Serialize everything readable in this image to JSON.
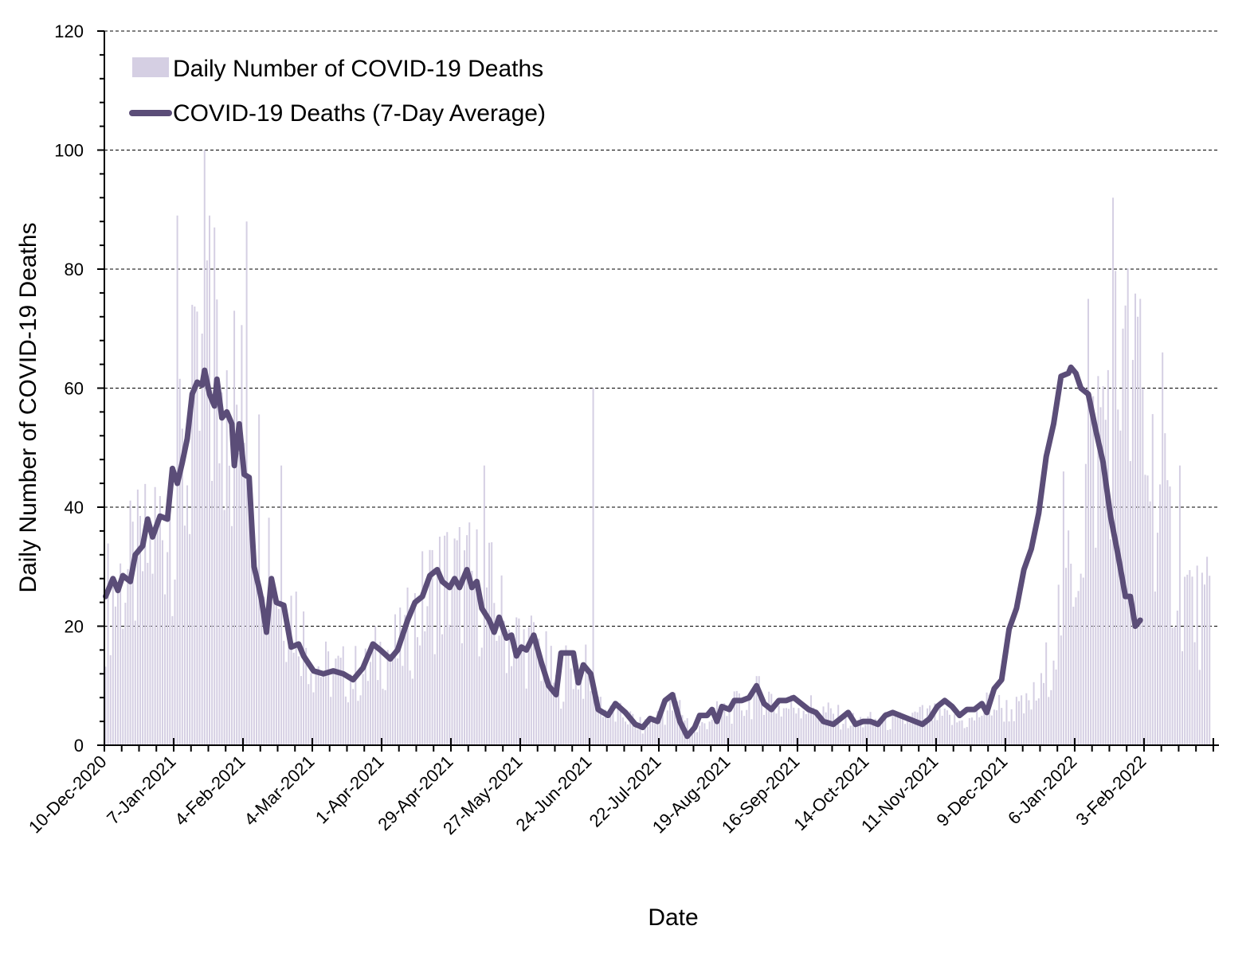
{
  "chart_data": {
    "type": "bar+line",
    "title": "",
    "xlabel": "Date",
    "ylabel": "Daily Number of COVID-19 Deaths",
    "ylim": [
      0,
      120
    ],
    "y_ticks": [
      0,
      20,
      40,
      60,
      80,
      100,
      120
    ],
    "grid": "horizontal dashed at major y ticks",
    "x_start_date": "10-Dec-2020",
    "x_end_date": "27-Feb-2022",
    "x_tick_labels": [
      "10-Dec-2020",
      "7-Jan-2021",
      "4-Feb-2021",
      "4-Mar-2021",
      "1-Apr-2021",
      "29-Apr-2021",
      "27-May-2021",
      "24-Jun-2021",
      "22-Jul-2021",
      "19-Aug-2021",
      "16-Sep-2021",
      "14-Oct-2021",
      "11-Nov-2021",
      "9-Dec-2021",
      "6-Jan-2022",
      "3-Feb-2022"
    ],
    "x_tick_interval_days": 28,
    "x_minor_tick_interval_days": 7,
    "legend": {
      "placement": "top-left",
      "entries": [
        {
          "label": "Daily Number of COVID-19 Deaths",
          "type": "bar",
          "color": "#d5cfe3"
        },
        {
          "label": "COVID-19 Deaths (7-Day Average)",
          "type": "line",
          "color": "#5b4d78"
        }
      ]
    },
    "series": [
      {
        "name": "Daily Number of COVID-19 Deaths",
        "type": "bar",
        "color": "#d5cfe3",
        "note": "Approximate: bar heights estimated from visible envelope in 7-day steps (day offset from 10-Dec-2020, typical daily deaths); notable spikes listed separately",
        "weekly_level_estimates": [
          {
            "day": 0,
            "value": 24
          },
          {
            "day": 7,
            "value": 28
          },
          {
            "day": 14,
            "value": 30
          },
          {
            "day": 21,
            "value": 36
          },
          {
            "day": 28,
            "value": 40
          },
          {
            "day": 35,
            "value": 50
          },
          {
            "day": 42,
            "value": 60
          },
          {
            "day": 49,
            "value": 58
          },
          {
            "day": 56,
            "value": 52
          },
          {
            "day": 63,
            "value": 42
          },
          {
            "day": 70,
            "value": 26
          },
          {
            "day": 77,
            "value": 22
          },
          {
            "day": 84,
            "value": 14
          },
          {
            "day": 91,
            "value": 12
          },
          {
            "day": 98,
            "value": 12
          },
          {
            "day": 105,
            "value": 12
          },
          {
            "day": 112,
            "value": 16
          },
          {
            "day": 119,
            "value": 16
          },
          {
            "day": 126,
            "value": 22
          },
          {
            "day": 133,
            "value": 27
          },
          {
            "day": 140,
            "value": 28
          },
          {
            "day": 147,
            "value": 27
          },
          {
            "day": 154,
            "value": 26
          },
          {
            "day": 161,
            "value": 20
          },
          {
            "day": 168,
            "value": 17
          },
          {
            "day": 175,
            "value": 16
          },
          {
            "day": 182,
            "value": 10
          },
          {
            "day": 189,
            "value": 14
          },
          {
            "day": 196,
            "value": 11
          },
          {
            "day": 203,
            "value": 5
          },
          {
            "day": 210,
            "value": 5
          },
          {
            "day": 217,
            "value": 3
          },
          {
            "day": 224,
            "value": 5
          },
          {
            "day": 231,
            "value": 7
          },
          {
            "day": 238,
            "value": 2
          },
          {
            "day": 245,
            "value": 5
          },
          {
            "day": 252,
            "value": 6
          },
          {
            "day": 259,
            "value": 7
          },
          {
            "day": 266,
            "value": 9
          },
          {
            "day": 273,
            "value": 6
          },
          {
            "day": 280,
            "value": 7
          },
          {
            "day": 287,
            "value": 6
          },
          {
            "day": 294,
            "value": 5
          },
          {
            "day": 301,
            "value": 4
          },
          {
            "day": 308,
            "value": 4
          },
          {
            "day": 315,
            "value": 4
          },
          {
            "day": 322,
            "value": 4
          },
          {
            "day": 329,
            "value": 5
          },
          {
            "day": 336,
            "value": 5
          },
          {
            "day": 343,
            "value": 4
          },
          {
            "day": 350,
            "value": 4
          },
          {
            "day": 357,
            "value": 7
          },
          {
            "day": 364,
            "value": 6
          },
          {
            "day": 371,
            "value": 6
          },
          {
            "day": 378,
            "value": 9
          },
          {
            "day": 385,
            "value": 21
          },
          {
            "day": 392,
            "value": 33
          },
          {
            "day": 399,
            "value": 48
          },
          {
            "day": 406,
            "value": 60
          },
          {
            "day": 413,
            "value": 60
          },
          {
            "day": 420,
            "value": 52
          },
          {
            "day": 427,
            "value": 38
          },
          {
            "day": 434,
            "value": 28
          },
          {
            "day": 441,
            "value": 22
          },
          {
            "day": 446,
            "value": 22
          }
        ],
        "notable_spikes": [
          {
            "day": 29,
            "value": 89
          },
          {
            "day": 35,
            "value": 74
          },
          {
            "day": 40,
            "value": 100
          },
          {
            "day": 42,
            "value": 69
          },
          {
            "day": 42,
            "value": 89
          },
          {
            "day": 44,
            "value": 87
          },
          {
            "day": 49,
            "value": 63
          },
          {
            "day": 52,
            "value": 73
          },
          {
            "day": 57,
            "value": 88
          },
          {
            "day": 71,
            "value": 47
          },
          {
            "day": 153,
            "value": 47
          },
          {
            "day": 197,
            "value": 60
          },
          {
            "day": 387,
            "value": 46
          },
          {
            "day": 397,
            "value": 75
          },
          {
            "day": 407,
            "value": 92
          },
          {
            "day": 411,
            "value": 70
          },
          {
            "day": 417,
            "value": 72
          },
          {
            "day": 418,
            "value": 75
          },
          {
            "day": 427,
            "value": 66
          },
          {
            "day": 434,
            "value": 47
          }
        ]
      },
      {
        "name": "COVID-19 Deaths (7-Day Average)",
        "type": "line",
        "color": "#5b4d78",
        "note": "Approximate values traced from the plotted line (day offset from 10-Dec-2020)",
        "points": [
          {
            "day": 0,
            "value": 25
          },
          {
            "day": 3,
            "value": 28
          },
          {
            "day": 5,
            "value": 26
          },
          {
            "day": 7,
            "value": 28.5
          },
          {
            "day": 10,
            "value": 27.5
          },
          {
            "day": 12,
            "value": 32
          },
          {
            "day": 15,
            "value": 33.5
          },
          {
            "day": 17,
            "value": 38
          },
          {
            "day": 19,
            "value": 35
          },
          {
            "day": 22,
            "value": 38.5
          },
          {
            "day": 25,
            "value": 38
          },
          {
            "day": 27,
            "value": 46.5
          },
          {
            "day": 29,
            "value": 44
          },
          {
            "day": 31,
            "value": 47.5
          },
          {
            "day": 33,
            "value": 51.5
          },
          {
            "day": 35,
            "value": 59
          },
          {
            "day": 37,
            "value": 61
          },
          {
            "day": 39,
            "value": 60.5
          },
          {
            "day": 40,
            "value": 63
          },
          {
            "day": 42,
            "value": 59
          },
          {
            "day": 44,
            "value": 57
          },
          {
            "day": 45,
            "value": 61.5
          },
          {
            "day": 47,
            "value": 55
          },
          {
            "day": 49,
            "value": 56
          },
          {
            "day": 51,
            "value": 54
          },
          {
            "day": 52,
            "value": 47
          },
          {
            "day": 54,
            "value": 54
          },
          {
            "day": 56,
            "value": 45.5
          },
          {
            "day": 58,
            "value": 45
          },
          {
            "day": 60,
            "value": 30
          },
          {
            "day": 62,
            "value": 26.5
          },
          {
            "day": 63,
            "value": 24.5
          },
          {
            "day": 65,
            "value": 19
          },
          {
            "day": 67,
            "value": 28
          },
          {
            "day": 69,
            "value": 24
          },
          {
            "day": 72,
            "value": 23.5
          },
          {
            "day": 75,
            "value": 16.5
          },
          {
            "day": 78,
            "value": 17
          },
          {
            "day": 80,
            "value": 15
          },
          {
            "day": 84,
            "value": 12.5
          },
          {
            "day": 88,
            "value": 12
          },
          {
            "day": 92,
            "value": 12.5
          },
          {
            "day": 96,
            "value": 12
          },
          {
            "day": 100,
            "value": 11
          },
          {
            "day": 104,
            "value": 13
          },
          {
            "day": 108,
            "value": 17
          },
          {
            "day": 111,
            "value": 16
          },
          {
            "day": 115,
            "value": 14.5
          },
          {
            "day": 118,
            "value": 16
          },
          {
            "day": 122,
            "value": 21
          },
          {
            "day": 125,
            "value": 24
          },
          {
            "day": 128,
            "value": 25
          },
          {
            "day": 131,
            "value": 28.5
          },
          {
            "day": 134,
            "value": 29.5
          },
          {
            "day": 136,
            "value": 27.5
          },
          {
            "day": 139,
            "value": 26.5
          },
          {
            "day": 141,
            "value": 28
          },
          {
            "day": 143,
            "value": 26.5
          },
          {
            "day": 146,
            "value": 29.5
          },
          {
            "day": 148,
            "value": 26.5
          },
          {
            "day": 150,
            "value": 27.5
          },
          {
            "day": 152,
            "value": 23
          },
          {
            "day": 155,
            "value": 21
          },
          {
            "day": 157,
            "value": 19
          },
          {
            "day": 159,
            "value": 21.5
          },
          {
            "day": 162,
            "value": 18
          },
          {
            "day": 164,
            "value": 18.5
          },
          {
            "day": 166,
            "value": 15
          },
          {
            "day": 168,
            "value": 16.5
          },
          {
            "day": 170,
            "value": 16
          },
          {
            "day": 173,
            "value": 18.5
          },
          {
            "day": 176,
            "value": 14
          },
          {
            "day": 179,
            "value": 10
          },
          {
            "day": 182,
            "value": 8.5
          },
          {
            "day": 184,
            "value": 15.5
          },
          {
            "day": 189,
            "value": 15.5
          },
          {
            "day": 191,
            "value": 10.5
          },
          {
            "day": 193,
            "value": 13.5
          },
          {
            "day": 196,
            "value": 12
          },
          {
            "day": 199,
            "value": 6
          },
          {
            "day": 203,
            "value": 5
          },
          {
            "day": 206,
            "value": 7
          },
          {
            "day": 210,
            "value": 5.5
          },
          {
            "day": 214,
            "value": 3.5
          },
          {
            "day": 217,
            "value": 3
          },
          {
            "day": 220,
            "value": 4.5
          },
          {
            "day": 223,
            "value": 4
          },
          {
            "day": 226,
            "value": 7.5
          },
          {
            "day": 229,
            "value": 8.5
          },
          {
            "day": 232,
            "value": 4
          },
          {
            "day": 235,
            "value": 1.5
          },
          {
            "day": 238,
            "value": 3
          },
          {
            "day": 240,
            "value": 5
          },
          {
            "day": 243,
            "value": 5
          },
          {
            "day": 245,
            "value": 6
          },
          {
            "day": 247,
            "value": 4
          },
          {
            "day": 249,
            "value": 6.5
          },
          {
            "day": 252,
            "value": 6
          },
          {
            "day": 254,
            "value": 7.5
          },
          {
            "day": 257,
            "value": 7.5
          },
          {
            "day": 260,
            "value": 8
          },
          {
            "day": 263,
            "value": 10
          },
          {
            "day": 266,
            "value": 7
          },
          {
            "day": 269,
            "value": 6
          },
          {
            "day": 272,
            "value": 7.5
          },
          {
            "day": 275,
            "value": 7.5
          },
          {
            "day": 278,
            "value": 8
          },
          {
            "day": 281,
            "value": 7
          },
          {
            "day": 284,
            "value": 6
          },
          {
            "day": 287,
            "value": 5.5
          },
          {
            "day": 290,
            "value": 4
          },
          {
            "day": 294,
            "value": 3.5
          },
          {
            "day": 297,
            "value": 4.5
          },
          {
            "day": 300,
            "value": 5.5
          },
          {
            "day": 303,
            "value": 3.5
          },
          {
            "day": 306,
            "value": 4
          },
          {
            "day": 309,
            "value": 4
          },
          {
            "day": 312,
            "value": 3.5
          },
          {
            "day": 315,
            "value": 5
          },
          {
            "day": 318,
            "value": 5.5
          },
          {
            "day": 321,
            "value": 5
          },
          {
            "day": 324,
            "value": 4.5
          },
          {
            "day": 327,
            "value": 4
          },
          {
            "day": 330,
            "value": 3.5
          },
          {
            "day": 333,
            "value": 4.5
          },
          {
            "day": 336,
            "value": 6.5
          },
          {
            "day": 339,
            "value": 7.5
          },
          {
            "day": 342,
            "value": 6.5
          },
          {
            "day": 345,
            "value": 5
          },
          {
            "day": 348,
            "value": 6
          },
          {
            "day": 351,
            "value": 6
          },
          {
            "day": 354,
            "value": 7
          },
          {
            "day": 356,
            "value": 5.5
          },
          {
            "day": 359,
            "value": 9.5
          },
          {
            "day": 362,
            "value": 11
          },
          {
            "day": 365,
            "value": 19.5
          },
          {
            "day": 368,
            "value": 23
          },
          {
            "day": 371,
            "value": 29.5
          },
          {
            "day": 374,
            "value": 33
          },
          {
            "day": 377,
            "value": 39
          },
          {
            "day": 380,
            "value": 48.5
          },
          {
            "day": 383,
            "value": 54
          },
          {
            "day": 386,
            "value": 62
          },
          {
            "day": 389,
            "value": 62.5
          },
          {
            "day": 390,
            "value": 63.5
          },
          {
            "day": 392,
            "value": 62.5
          },
          {
            "day": 394,
            "value": 60
          },
          {
            "day": 397,
            "value": 59
          },
          {
            "day": 400,
            "value": 53
          },
          {
            "day": 403,
            "value": 47.5
          },
          {
            "day": 406,
            "value": 38.5
          },
          {
            "day": 409,
            "value": 32
          },
          {
            "day": 412,
            "value": 25
          },
          {
            "day": 414,
            "value": 25
          },
          {
            "day": 416,
            "value": 20
          },
          {
            "day": 418,
            "value": 21
          }
        ]
      }
    ]
  }
}
